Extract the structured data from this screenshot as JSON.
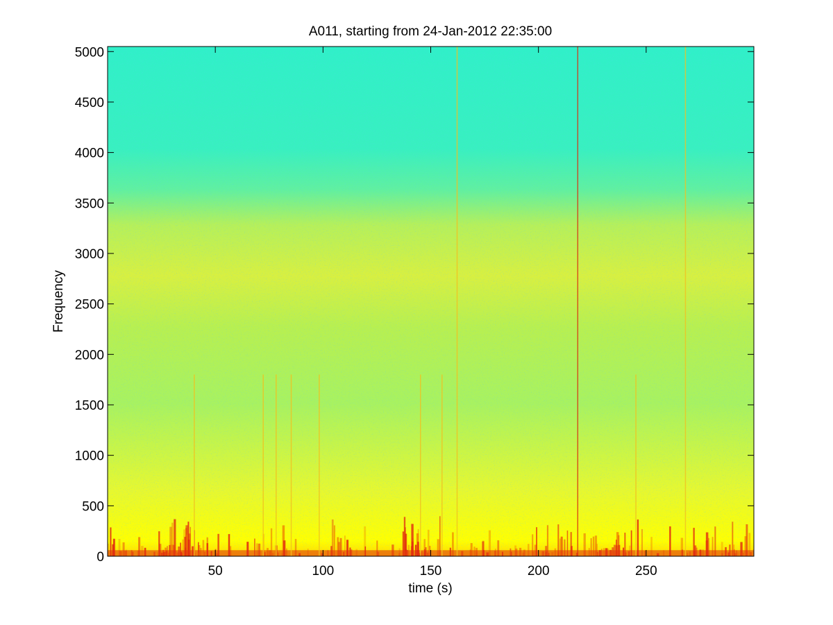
{
  "chart_data": {
    "type": "heatmap",
    "title": "A011, starting from 24-Jan-2012 22:35:00",
    "xlabel": "time (s)",
    "ylabel": "Frequency",
    "xlim": [
      0,
      300
    ],
    "ylim": [
      0,
      5050
    ],
    "xticks": [
      50,
      100,
      150,
      200,
      250
    ],
    "yticks": [
      0,
      500,
      1000,
      1500,
      2000,
      2500,
      3000,
      3500,
      4000,
      4500,
      5000
    ],
    "grid": false,
    "colormap": "jet",
    "colors": {
      "high_level": "#e01010",
      "mid_high_level": "#f0e020",
      "mid_level": "#d8f040",
      "low_level": "#30f0c0"
    },
    "spectral_profile": [
      {
        "frequency": 0,
        "level": "high"
      },
      {
        "frequency": 300,
        "level": "mid-high"
      },
      {
        "frequency": 700,
        "level": "mid"
      },
      {
        "frequency": 1500,
        "level": "mid-low"
      },
      {
        "frequency": 2800,
        "level": "mid"
      },
      {
        "frequency": 3600,
        "level": "low"
      },
      {
        "frequency": 5050,
        "level": "low"
      }
    ],
    "vertical_events_time_s": [
      40,
      72,
      78,
      85,
      98,
      145,
      155,
      162,
      218,
      245,
      268
    ]
  }
}
